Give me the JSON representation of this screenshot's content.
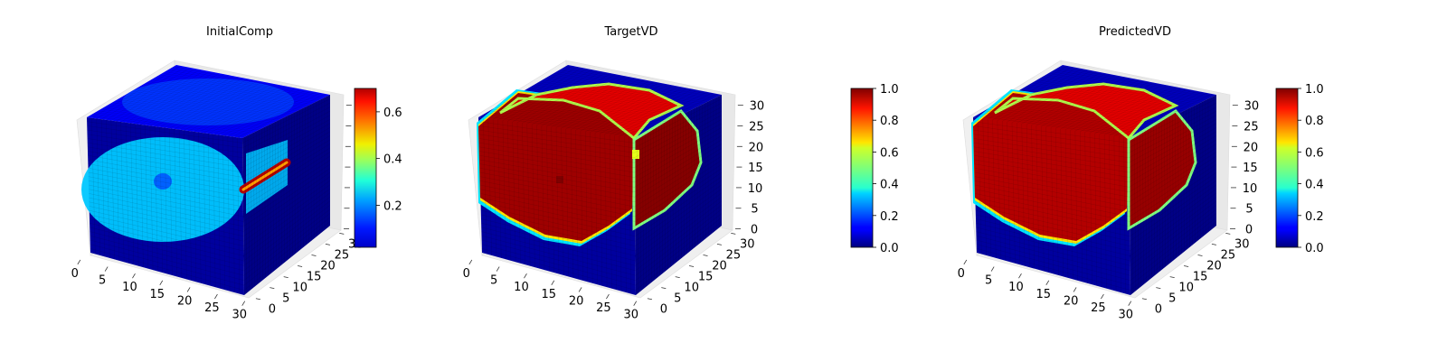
{
  "chart_data": [
    {
      "type": "voxel-3d",
      "title": "InitialComp",
      "x_ticks": [
        "0",
        "5",
        "10",
        "15",
        "20",
        "25",
        "30"
      ],
      "y_ticks": [
        "0",
        "5",
        "10",
        "15",
        "20",
        "25",
        "30"
      ],
      "z_ticks": [],
      "colormap": "jet",
      "colorbar": {
        "ticks": [
          "0.2",
          "0.4",
          "0.6"
        ],
        "range": [
          0.02,
          0.7
        ]
      },
      "field": {
        "background": 0.05,
        "interior": 0.3,
        "hotspot": 0.68
      }
    },
    {
      "type": "voxel-3d",
      "title": "TargetVD",
      "x_ticks": [
        "0",
        "5",
        "10",
        "15",
        "20",
        "25",
        "30"
      ],
      "y_ticks": [
        "0",
        "5",
        "10",
        "15",
        "20",
        "25",
        "30"
      ],
      "z_ticks": [
        "0",
        "5",
        "10",
        "15",
        "20",
        "25",
        "30"
      ],
      "colormap": "jet",
      "colorbar": {
        "ticks": [
          "0.0",
          "0.2",
          "0.4",
          "0.6",
          "0.8",
          "1.0"
        ],
        "range": [
          0.0,
          1.0
        ]
      },
      "field": {
        "background": 0.0,
        "interior": 1.0
      }
    },
    {
      "type": "voxel-3d",
      "title": "PredictedVD",
      "x_ticks": [
        "0",
        "5",
        "10",
        "15",
        "20",
        "25",
        "30"
      ],
      "y_ticks": [
        "0",
        "5",
        "10",
        "15",
        "20",
        "25",
        "30"
      ],
      "z_ticks": [
        "0",
        "5",
        "10",
        "15",
        "20",
        "25",
        "30"
      ],
      "colormap": "jet",
      "colorbar": {
        "ticks": [
          "0.0",
          "0.2",
          "0.4",
          "0.6",
          "0.8",
          "1.0"
        ],
        "range": [
          0.0,
          1.0
        ]
      },
      "field": {
        "background": 0.0,
        "interior": 0.97
      }
    }
  ]
}
